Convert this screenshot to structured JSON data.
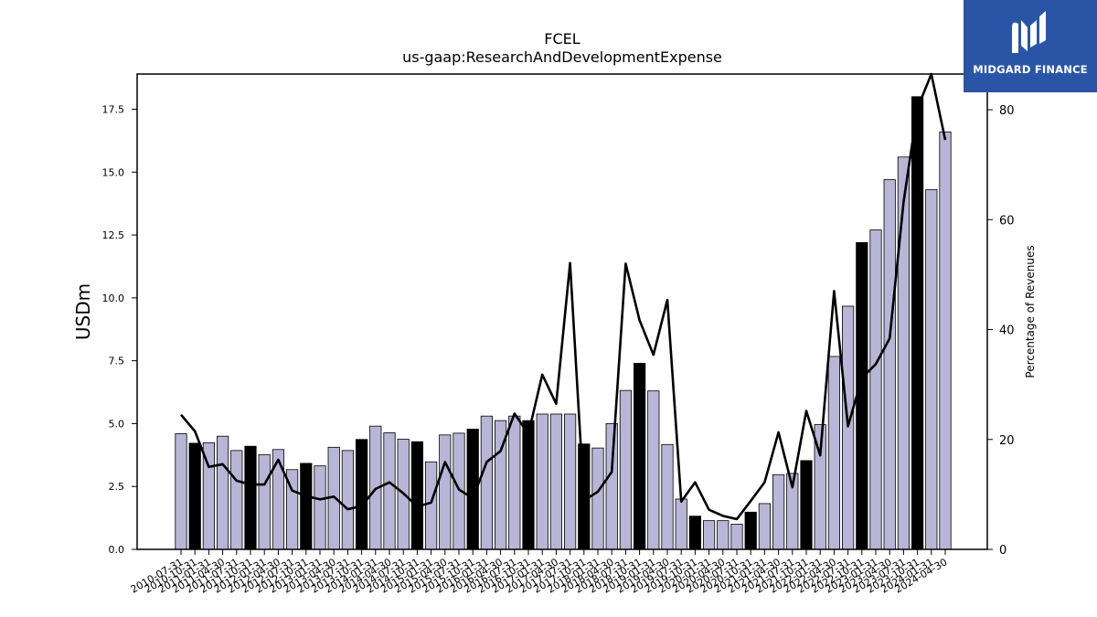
{
  "chart_data": {
    "type": "bar",
    "title": "FCEL",
    "subtitle": "us-gaap:ResearchAndDevelopmentExpense",
    "ylabel": "USDm",
    "y2label": "Percentage of Revenues",
    "ylim": [
      0,
      18.9
    ],
    "y2lim": [
      0,
      86.5
    ],
    "yticks": [
      "0.0",
      "2.5",
      "5.0",
      "7.5",
      "10.0",
      "12.5",
      "15.0",
      "17.5"
    ],
    "y2ticks": [
      "0",
      "20",
      "40",
      "60",
      "80"
    ],
    "categories": [
      "2010-07-31",
      "2010-10-31",
      "2011-01-31",
      "2011-04-30",
      "2011-07-31",
      "2011-10-31",
      "2012-01-31",
      "2012-04-30",
      "2012-07-31",
      "2012-10-31",
      "2013-01-31",
      "2013-04-30",
      "2013-07-31",
      "2013-10-31",
      "2014-01-31",
      "2014-04-30",
      "2014-07-31",
      "2014-10-31",
      "2015-01-31",
      "2015-04-30",
      "2015-07-31",
      "2015-10-31",
      "2016-01-31",
      "2016-04-30",
      "2016-07-31",
      "2016-10-31",
      "2017-01-31",
      "2017-04-30",
      "2017-07-31",
      "2017-10-31",
      "2018-01-31",
      "2018-04-30",
      "2018-07-31",
      "2018-10-31",
      "2019-01-31",
      "2019-04-30",
      "2019-07-31",
      "2019-10-31",
      "2020-01-31",
      "2020-04-30",
      "2020-07-31",
      "2020-10-31",
      "2021-01-31",
      "2021-04-30",
      "2021-07-31",
      "2021-10-31",
      "2022-01-31",
      "2022-04-30",
      "2022-07-31",
      "2022-10-31",
      "2023-01-31",
      "2023-04-30",
      "2023-07-31",
      "2023-10-31",
      "2024-01-31",
      "2024-04-30"
    ],
    "xtick_labels": [
      "2010-07-31",
      "2010-10-31",
      "2011-01-31",
      "2011-04-30",
      "2011-07-31",
      "2011-10-31",
      "2012-01-31",
      "2012-04-30",
      "2012-07-31",
      "2012-10-31",
      "2013-01-31",
      "2013-04-30",
      "2013-07-31",
      "2013-10-31",
      "2014-01-31",
      "2014-04-30",
      "2014-07-31",
      "2014-10-31",
      "2015-01-31",
      "2015-04-30",
      "2015-07-31",
      "2015-10-31",
      "2016-01-31",
      "2016-04-30",
      "2016-07-31",
      "2016-10-31",
      "2017-01-31",
      "2017-04-30",
      "2017-07-31",
      "2017-10-31",
      "2018-01-31",
      "2018-04-30",
      "2018-07-31",
      "2018-10-31",
      "2019-01-31",
      "2019-04-30",
      "2019-07-31",
      "2019-10-31",
      "2020-01-31",
      "2020-04-30",
      "2020-07-31",
      "2020-10-31",
      "2021-01-31",
      "2021-04-30",
      "2021-07-31",
      "2021-10-31",
      "2022-01-31",
      "2022-04-30",
      "2022-07-31",
      "2022-10-31",
      "2023-01-31",
      "2023-04-30",
      "2023-07-31",
      "2023-10-31",
      "2024-01-31",
      "2024-04-30"
    ],
    "series": [
      {
        "type": "bar",
        "axis": "left",
        "values": [
          4.6,
          4.22,
          4.24,
          4.5,
          3.93,
          4.1,
          3.77,
          3.97,
          3.17,
          3.42,
          3.32,
          4.06,
          3.93,
          4.37,
          4.9,
          4.64,
          4.38,
          4.28,
          3.48,
          4.55,
          4.62,
          4.78,
          5.3,
          5.12,
          5.3,
          5.12,
          5.38,
          5.38,
          5.38,
          4.19,
          4.03,
          5.0,
          6.32,
          7.4,
          6.3,
          4.17,
          2.0,
          1.32,
          1.14,
          1.14,
          1.0,
          1.48,
          1.82,
          2.97,
          3.02,
          3.53,
          4.96,
          7.67,
          9.67,
          12.2,
          12.7,
          14.7,
          15.6,
          18.0,
          14.3,
          16.6
        ],
        "highlight_color": "#000000",
        "color": "#b9b5d6",
        "highlight_quarter": "10-31"
      },
      {
        "type": "line",
        "axis": "right",
        "color": "#000000",
        "values": [
          24.5,
          21.5,
          15.0,
          15.5,
          12.5,
          11.8,
          11.8,
          16.3,
          10.7,
          9.7,
          9.1,
          9.6,
          7.3,
          7.9,
          11.0,
          12.2,
          10.2,
          7.8,
          8.5,
          15.9,
          10.9,
          9.3,
          15.9,
          17.9,
          24.7,
          21.0,
          31.8,
          26.5,
          52.1,
          8.9,
          10.5,
          14.1,
          52.0,
          41.7,
          35.4,
          45.4,
          8.7,
          12.2,
          7.2,
          6.1,
          5.5,
          8.8,
          12.2,
          21.3,
          11.3,
          25.2,
          17.1,
          47.0,
          22.4,
          31.2,
          33.7,
          38.4,
          63.2,
          80.3,
          86.5,
          74.5
        ]
      }
    ],
    "grid": false,
    "legend": "none"
  },
  "branding": {
    "logo_text": "MIDGARD FINANCE",
    "logo_color": "#2a55a7"
  }
}
